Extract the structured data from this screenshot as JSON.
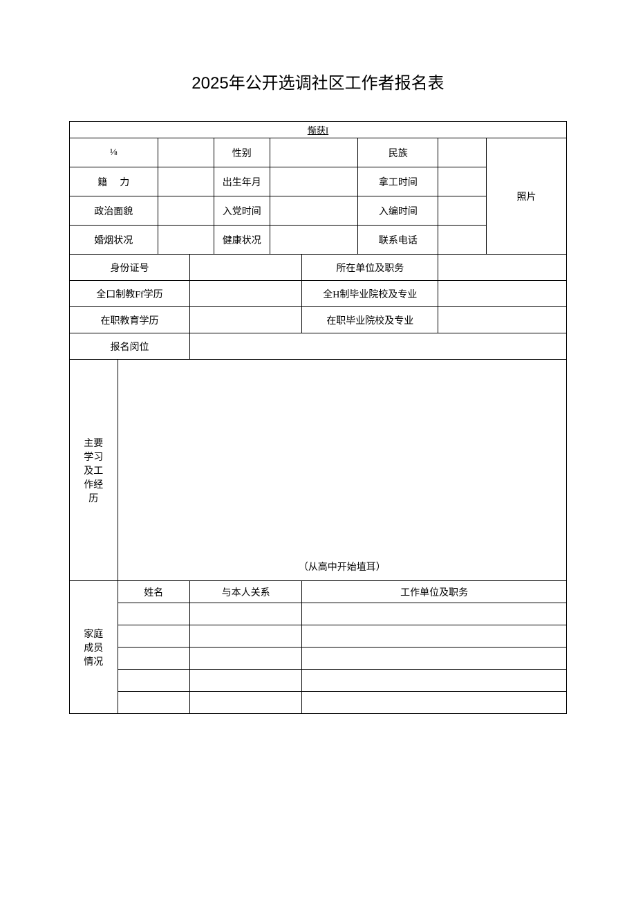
{
  "title": "2025年公开选调社区工作者报名表",
  "top_label": "惭获I",
  "row1": {
    "name_label": "⅛",
    "gender_label": "性别",
    "ethnicity_label": "民族"
  },
  "row2": {
    "origin_label": "籍力",
    "birth_label": "出生年月",
    "work_time_label": "拿工时间"
  },
  "row3": {
    "political_label": "政治面貌",
    "party_time_label": "入党时间",
    "enroll_time_label": "入编时间"
  },
  "row4": {
    "marital_label": "婚烟状况",
    "health_label": "健康状况",
    "phone_label": "联系电话"
  },
  "row5": {
    "id_label": "身份证号",
    "unit_label": "所在单位及职务"
  },
  "row6": {
    "edu_label": "全口制教Ff学历",
    "school_label": "全H制毕业院校及专业"
  },
  "row7": {
    "edu_label": "在职教育学历",
    "school_label": "在职毕业院校及专业"
  },
  "row8": {
    "position_label": "报名闵位"
  },
  "history": {
    "label_lines": [
      "主要",
      "学习",
      "及工",
      "作经",
      "历"
    ],
    "bottom_note": "（从高中开始埴耳）"
  },
  "family": {
    "label_lines": [
      "家庭",
      "成员",
      "情况"
    ],
    "header_name": "姓名",
    "header_relation": "与本人关系",
    "header_unit": "工作单位及职务"
  },
  "photo_label": "照片",
  "style": {
    "border_color": "#000000",
    "background_color": "#ffffff",
    "text_color": "#000000",
    "title_fontsize": 24,
    "body_fontsize": 14
  }
}
